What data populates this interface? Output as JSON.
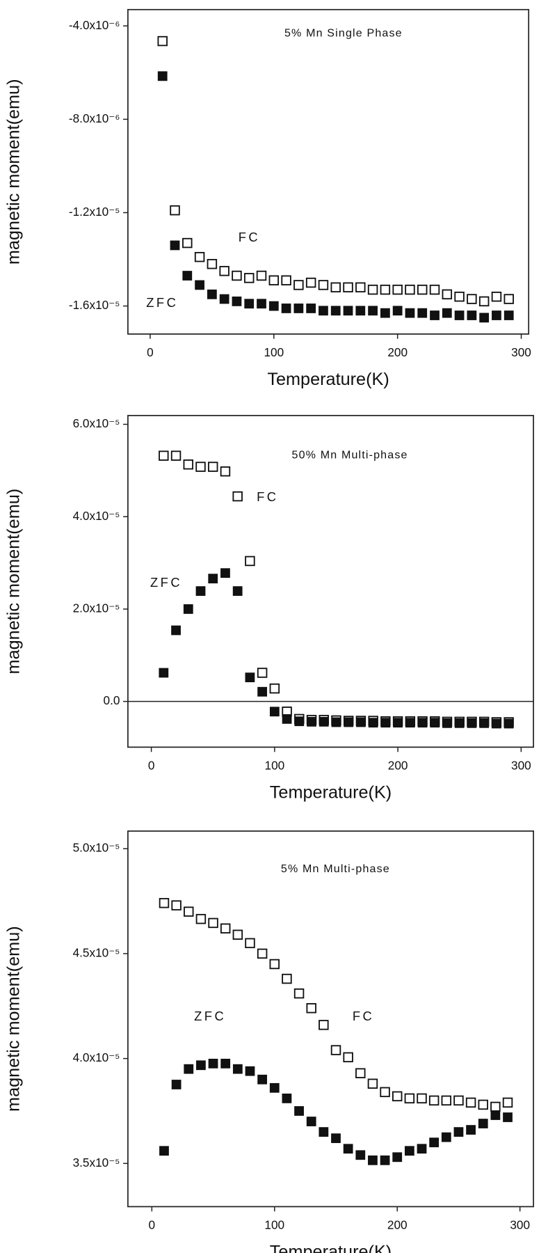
{
  "chart_data": [
    {
      "type": "scatter",
      "title": "5% Mn Single Phase",
      "xlabel": "Temperature(K)",
      "ylabel": "magnetic moment(emu)",
      "xlim": [
        -18,
        306
      ],
      "xticks": [
        0,
        100,
        200,
        300
      ],
      "ylim": [
        -1.72e-05,
        -3.3e-06
      ],
      "yticks": [
        {
          "value": -4e-06,
          "label": "-4.0x10⁻⁶"
        },
        {
          "value": -8e-06,
          "label": "-8.0x10⁻⁶"
        },
        {
          "value": -1.2e-05,
          "label": "-1.2x10⁻⁵"
        },
        {
          "value": -1.6e-05,
          "label": "-1.6x10⁻⁵"
        }
      ],
      "x": [
        10,
        20,
        30,
        40,
        50,
        60,
        70,
        80,
        90,
        100,
        110,
        120,
        130,
        140,
        150,
        160,
        170,
        180,
        190,
        200,
        210,
        220,
        230,
        240,
        250,
        260,
        270,
        280,
        290
      ],
      "series": [
        {
          "name": "FC",
          "color": "#111111",
          "marker": "open-square",
          "values": [
            -4.65e-06,
            -1.19e-05,
            -1.33e-05,
            -1.39e-05,
            -1.42e-05,
            -1.45e-05,
            -1.47e-05,
            -1.48e-05,
            -1.47e-05,
            -1.49e-05,
            -1.49e-05,
            -1.51e-05,
            -1.5e-05,
            -1.51e-05,
            -1.52e-05,
            -1.52e-05,
            -1.52e-05,
            -1.53e-05,
            -1.53e-05,
            -1.53e-05,
            -1.53e-05,
            -1.53e-05,
            -1.53e-05,
            -1.55e-05,
            -1.56e-05,
            -1.57e-05,
            -1.58e-05,
            -1.56e-05,
            -1.57e-05
          ]
        },
        {
          "name": "ZFC",
          "color": "#111111",
          "marker": "filled-square",
          "values": [
            -6.15e-06,
            -1.34e-05,
            -1.47e-05,
            -1.51e-05,
            -1.55e-05,
            -1.57e-05,
            -1.58e-05,
            -1.59e-05,
            -1.59e-05,
            -1.6e-05,
            -1.61e-05,
            -1.61e-05,
            -1.61e-05,
            -1.62e-05,
            -1.62e-05,
            -1.62e-05,
            -1.62e-05,
            -1.62e-05,
            -1.63e-05,
            -1.62e-05,
            -1.63e-05,
            -1.63e-05,
            -1.64e-05,
            -1.63e-05,
            -1.64e-05,
            -1.64e-05,
            -1.65e-05,
            -1.64e-05,
            -1.64e-05
          ]
        }
      ]
    },
    {
      "type": "scatter",
      "title": "50% Mn Multi-phase",
      "xlabel": "Temperature(K)",
      "ylabel": "magnetic moment(emu)",
      "xlim": [
        -19,
        310
      ],
      "xticks": [
        0,
        100,
        200,
        300
      ],
      "ylim": [
        -9.9e-06,
        6.19e-05
      ],
      "yticks": [
        {
          "value": 6e-05,
          "label": "6.0x10⁻⁵"
        },
        {
          "value": 4e-05,
          "label": "4.0x10⁻⁵"
        },
        {
          "value": 2e-05,
          "label": "2.0x10⁻⁵"
        },
        {
          "value": 0,
          "label": "0.0"
        }
      ],
      "zero_line": true,
      "x": [
        10,
        20,
        30,
        40,
        50,
        60,
        70,
        80,
        90,
        100,
        110,
        120,
        130,
        140,
        150,
        160,
        170,
        180,
        190,
        200,
        210,
        220,
        230,
        240,
        250,
        260,
        270,
        280,
        290
      ],
      "series": [
        {
          "name": "FC",
          "color": "#111111",
          "marker": "open-square",
          "values": [
            5.32e-05,
            5.32e-05,
            5.13e-05,
            5.08e-05,
            5.08e-05,
            4.98e-05,
            4.44e-05,
            3.04e-05,
            6.2e-06,
            2.8e-06,
            -2.2e-06,
            -3.8e-06,
            -4e-06,
            -4e-06,
            -4.1e-06,
            -4.2e-06,
            -4.2e-06,
            -4.2e-06,
            -4.3e-06,
            -4.3e-06,
            -4.3e-06,
            -4.3e-06,
            -4.3e-06,
            -4.4e-06,
            -4.4e-06,
            -4.4e-06,
            -4.4e-06,
            -4.5e-06,
            -4.5e-06
          ]
        },
        {
          "name": "ZFC",
          "color": "#111111",
          "marker": "filled-square",
          "values": [
            6.2e-06,
            1.54e-05,
            2e-05,
            2.39e-05,
            2.66e-05,
            2.78e-05,
            2.39e-05,
            5.2e-06,
            2.1e-06,
            -2.2e-06,
            -3.8e-06,
            -4.3e-06,
            -4.4e-06,
            -4.4e-06,
            -4.5e-06,
            -4.5e-06,
            -4.5e-06,
            -4.6e-06,
            -4.6e-06,
            -4.6e-06,
            -4.6e-06,
            -4.6e-06,
            -4.6e-06,
            -4.7e-06,
            -4.7e-06,
            -4.7e-06,
            -4.7e-06,
            -4.8e-06,
            -4.8e-06
          ]
        }
      ]
    },
    {
      "type": "scatter",
      "title": "5% Mn Multi-phase",
      "xlabel": "Temperature(K)",
      "ylabel": "magnetic moment(emu)",
      "xlim": [
        -19.5,
        311
      ],
      "xticks": [
        0,
        100,
        200,
        300
      ],
      "ylim": [
        3.294e-05,
        5.084e-05
      ],
      "yticks": [
        {
          "value": 5e-05,
          "label": "5.0x10⁻⁵"
        },
        {
          "value": 4.5e-05,
          "label": "4.5x10⁻⁵"
        },
        {
          "value": 4e-05,
          "label": "4.0x10⁻⁵"
        },
        {
          "value": 3.5e-05,
          "label": "3.5x10⁻⁵"
        }
      ],
      "x": [
        10,
        20,
        30,
        40,
        50,
        60,
        70,
        80,
        90,
        100,
        110,
        120,
        130,
        140,
        150,
        160,
        170,
        180,
        190,
        200,
        210,
        220,
        230,
        240,
        250,
        260,
        270,
        280,
        290
      ],
      "series": [
        {
          "name": "FC",
          "color": "#111111",
          "marker": "open-square",
          "values": [
            4.741e-05,
            4.73e-05,
            4.7e-05,
            4.665e-05,
            4.646e-05,
            4.62e-05,
            4.59e-05,
            4.55e-05,
            4.5e-05,
            4.45e-05,
            4.38e-05,
            4.31e-05,
            4.24e-05,
            4.16e-05,
            4.04e-05,
            4.006e-05,
            3.93e-05,
            3.88e-05,
            3.84e-05,
            3.82e-05,
            3.81e-05,
            3.81e-05,
            3.8e-05,
            3.8e-05,
            3.8e-05,
            3.79e-05,
            3.78e-05,
            3.77e-05,
            3.79e-05
          ]
        },
        {
          "name": "ZFC",
          "color": "#111111",
          "marker": "filled-square",
          "values": [
            3.56e-05,
            3.876e-05,
            3.95e-05,
            3.968e-05,
            3.976e-05,
            3.976e-05,
            3.95e-05,
            3.94e-05,
            3.9e-05,
            3.86e-05,
            3.81e-05,
            3.75e-05,
            3.7e-05,
            3.65e-05,
            3.62e-05,
            3.57e-05,
            3.54e-05,
            3.515e-05,
            3.515e-05,
            3.53e-05,
            3.56e-05,
            3.57e-05,
            3.6e-05,
            3.625e-05,
            3.65e-05,
            3.66e-05,
            3.69e-05,
            3.73e-05,
            3.72e-05
          ]
        }
      ]
    }
  ]
}
